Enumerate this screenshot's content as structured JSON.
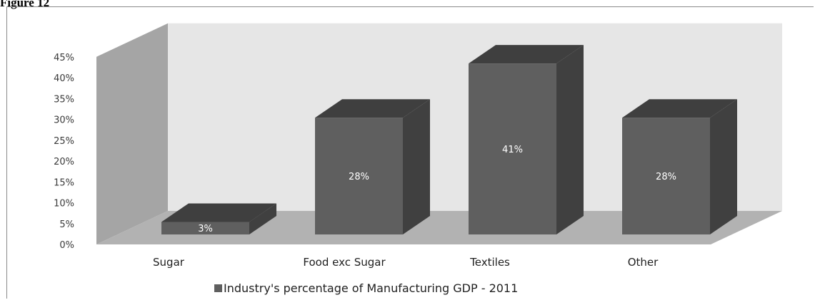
{
  "figure_label": "Figure 12",
  "chart_data": {
    "type": "bar",
    "categories": [
      "Sugar",
      "Food exc Sugar",
      "Textiles",
      "Other"
    ],
    "series": [
      {
        "name": "Industry's percentage of Manufacturing GDP - 2011",
        "values": [
          3,
          28,
          41,
          28
        ]
      }
    ],
    "data_labels": [
      "3%",
      "28%",
      "41%",
      "28%"
    ],
    "y_ticks": [
      "0%",
      "5%",
      "10%",
      "15%",
      "20%",
      "25%",
      "30%",
      "35%",
      "40%",
      "45%"
    ],
    "ylim": [
      0,
      45
    ],
    "legend_position": "bottom",
    "grid": false,
    "style": "3d",
    "colors": {
      "bar_front": "#5f5f5f",
      "bar_top": "#3f3f3f",
      "bar_side": "#404040",
      "back_wall": "#e6e6e6",
      "side_wall": "#a5a5a5",
      "floor": "#b2b2b2"
    }
  }
}
